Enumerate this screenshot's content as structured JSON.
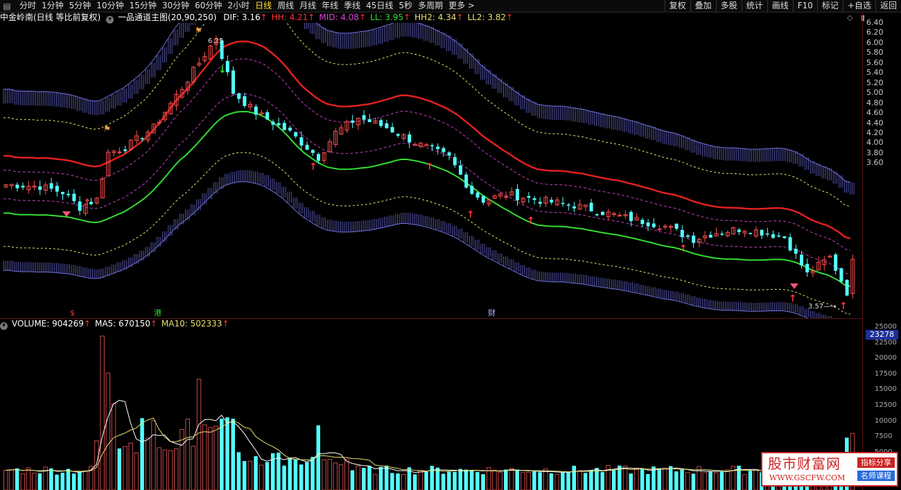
{
  "toolbar": {
    "tabs": [
      {
        "label": "分时",
        "active": false
      },
      {
        "label": "1分钟",
        "active": false
      },
      {
        "label": "5分钟",
        "active": false
      },
      {
        "label": "10分钟",
        "active": false
      },
      {
        "label": "15分钟",
        "active": false
      },
      {
        "label": "30分钟",
        "active": false
      },
      {
        "label": "60分钟",
        "active": false
      },
      {
        "label": "2小时",
        "active": false
      },
      {
        "label": "日线",
        "active": true
      },
      {
        "label": "周线",
        "active": false
      },
      {
        "label": "月线",
        "active": false
      },
      {
        "label": "年线",
        "active": false
      },
      {
        "label": "季线",
        "active": false
      },
      {
        "label": "45日线",
        "active": false
      },
      {
        "label": "5秒",
        "active": false
      },
      {
        "label": "多周期",
        "active": false
      },
      {
        "label": "更多 >",
        "active": false
      }
    ],
    "right_buttons": [
      "复权",
      "叠加",
      "多股",
      "统计",
      "画线",
      "F10",
      "标记",
      "+自选",
      "返回"
    ]
  },
  "price_panel": {
    "stock_name": "中金岭南(日线 等比前复权)",
    "indicator_name": "一品通道主图(20,90,250)",
    "indicators": [
      {
        "label": "DIF: 3.16",
        "color": "#ffffff"
      },
      {
        "label": "HH: 4.21",
        "color": "#ff3333"
      },
      {
        "label": "MID: 4.08",
        "color": "#e040e0"
      },
      {
        "label": "LL: 3.95",
        "color": "#33dd33"
      },
      {
        "label": "HH2: 4.34",
        "color": "#e8e070"
      },
      {
        "label": "LL2: 3.82",
        "color": "#e8e070"
      }
    ],
    "up_arrow": "↑",
    "y_ticks": [
      "6.40",
      "6.20",
      "6.00",
      "5.80",
      "5.60",
      "5.40",
      "5.20",
      "5.00",
      "4.80",
      "4.60",
      "4.40",
      "4.20",
      "4.00",
      "3.80",
      "3.60"
    ],
    "high_label": "6.25",
    "low_label": "3.57",
    "event_markers": [
      {
        "text": "$",
        "color": "#ff3333"
      },
      {
        "text": "港",
        "color": "#33dd33"
      },
      {
        "text": "财",
        "color": "#aabbff"
      }
    ]
  },
  "volume_panel": {
    "labels": [
      {
        "label": "VOLUME: 904269",
        "color": "#ffffff"
      },
      {
        "label": "MA5: 670150",
        "color": "#ffffff"
      },
      {
        "label": "MA10: 502333",
        "color": "#e8e070"
      }
    ],
    "y_ticks": [
      "25000",
      "22500",
      "20000",
      "17500",
      "15000",
      "12500",
      "10000",
      "7500",
      "5000"
    ],
    "current_value": "23278"
  },
  "colors": {
    "up": "#ff4d4d",
    "down": "#54ffff",
    "hh": "#e02020",
    "ll": "#33dd33",
    "channel": "#7070e0",
    "ma5": "#ffffff",
    "ma10": "#e8e070"
  },
  "watermark": {
    "title": "股市财富网",
    "url": "WWW.GSCFW.COM",
    "tag1": "指标分享",
    "tag2": "名师课程"
  }
}
